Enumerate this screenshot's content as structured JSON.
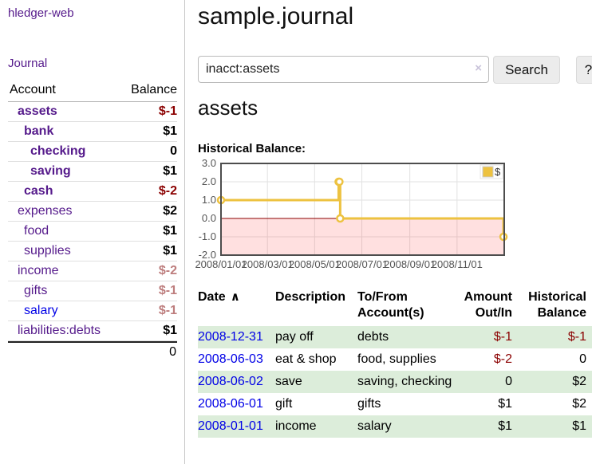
{
  "colors": {
    "visited_link_purple": "#551a8b",
    "unvisited_link_blue": "#0000e6",
    "negative_strong_red": "#8b0000",
    "negative_soft_red": "#bd7d7d",
    "row_stripe_green": "#dcedda",
    "chart_gold": "#edc240",
    "button_gray": "#ececec"
  },
  "sidebar": {
    "app_title": "hledger-web",
    "journal_link": "Journal",
    "accounts": {
      "header": {
        "account": "Account",
        "balance": "Balance"
      },
      "rows": [
        {
          "name": "assets",
          "balance": "$-1",
          "depth": 0,
          "in_account": true,
          "neg": "strong"
        },
        {
          "name": "bank",
          "balance": "$1",
          "depth": 1,
          "in_account": true,
          "neg": null
        },
        {
          "name": "checking",
          "balance": "0",
          "depth": 2,
          "in_account": true,
          "neg": null
        },
        {
          "name": "saving",
          "balance": "$1",
          "depth": 2,
          "in_account": true,
          "neg": null
        },
        {
          "name": "cash",
          "balance": "$-2",
          "depth": 1,
          "in_account": true,
          "neg": "strong"
        },
        {
          "name": "expenses",
          "balance": "$2",
          "depth": 0,
          "in_account": false,
          "neg": null
        },
        {
          "name": "food",
          "balance": "$1",
          "depth": 1,
          "in_account": false,
          "neg": null
        },
        {
          "name": "supplies",
          "balance": "$1",
          "depth": 1,
          "in_account": false,
          "neg": null
        },
        {
          "name": "income",
          "balance": "$-2",
          "depth": 0,
          "in_account": false,
          "neg": "soft"
        },
        {
          "name": "gifts",
          "balance": "$-1",
          "depth": 1,
          "in_account": false,
          "neg": "soft"
        },
        {
          "name": "salary",
          "balance": "$-1",
          "depth": 1,
          "in_account": false,
          "neg": "soft",
          "unvisited": true
        },
        {
          "name": "liabilities:debts",
          "balance": "$1",
          "depth": 0,
          "in_account": false,
          "neg": null
        }
      ],
      "total": "0"
    }
  },
  "main": {
    "title": "sample.journal",
    "search": {
      "value": "inacct:assets",
      "clear_icon": "×",
      "button_label": "Search",
      "help_label": "?"
    },
    "account_heading": "assets",
    "chart_title": "Historical Balance:"
  },
  "register": {
    "headers": [
      "Date",
      "Description",
      "To/From Account(s)",
      "Amount Out/In",
      "Historical Balance"
    ],
    "sort_indicator": "∧",
    "rows": [
      {
        "date": "2008-12-31",
        "description": "pay off",
        "accounts": "debts",
        "amount": "$-1",
        "balance": "$-1"
      },
      {
        "date": "2008-06-03",
        "description": "eat & shop",
        "accounts": "food, supplies",
        "amount": "$-2",
        "balance": "0"
      },
      {
        "date": "2008-06-02",
        "description": "save",
        "accounts": "saving, checking",
        "amount": "0",
        "balance": "$2"
      },
      {
        "date": "2008-06-01",
        "description": "gift",
        "accounts": "gifts",
        "amount": "$1",
        "balance": "$2"
      },
      {
        "date": "2008-01-01",
        "description": "income",
        "accounts": "salary",
        "amount": "$1",
        "balance": "$1"
      }
    ]
  },
  "chart_data": {
    "type": "line",
    "step": true,
    "title": "Historical Balance:",
    "series": [
      {
        "name": "$",
        "color": "#edc240",
        "points": [
          [
            "2008-01-01",
            1
          ],
          [
            "2008-06-01",
            2
          ],
          [
            "2008-06-02",
            2
          ],
          [
            "2008-06-03",
            0
          ],
          [
            "2008-12-31",
            -1
          ]
        ]
      }
    ],
    "x_domain": [
      "2008-01-01",
      "2009-01-01"
    ],
    "ylim": [
      -2,
      3
    ],
    "y_ticks": [
      3,
      2,
      1,
      0,
      -1,
      -2
    ],
    "x_ticks": [
      "2008/01/01",
      "2008/03/01",
      "2008/05/01",
      "2008/07/01",
      "2008/09/01",
      "2008/11/01"
    ],
    "grid": true,
    "legend_position": "top-right",
    "colors": {
      "grid": "#e2e2e2",
      "border": "#4d4d4d",
      "zero_line": "#8b0000",
      "negative_fill": "rgba(255,0,0,0.12)",
      "tick_text": "#545454"
    }
  }
}
